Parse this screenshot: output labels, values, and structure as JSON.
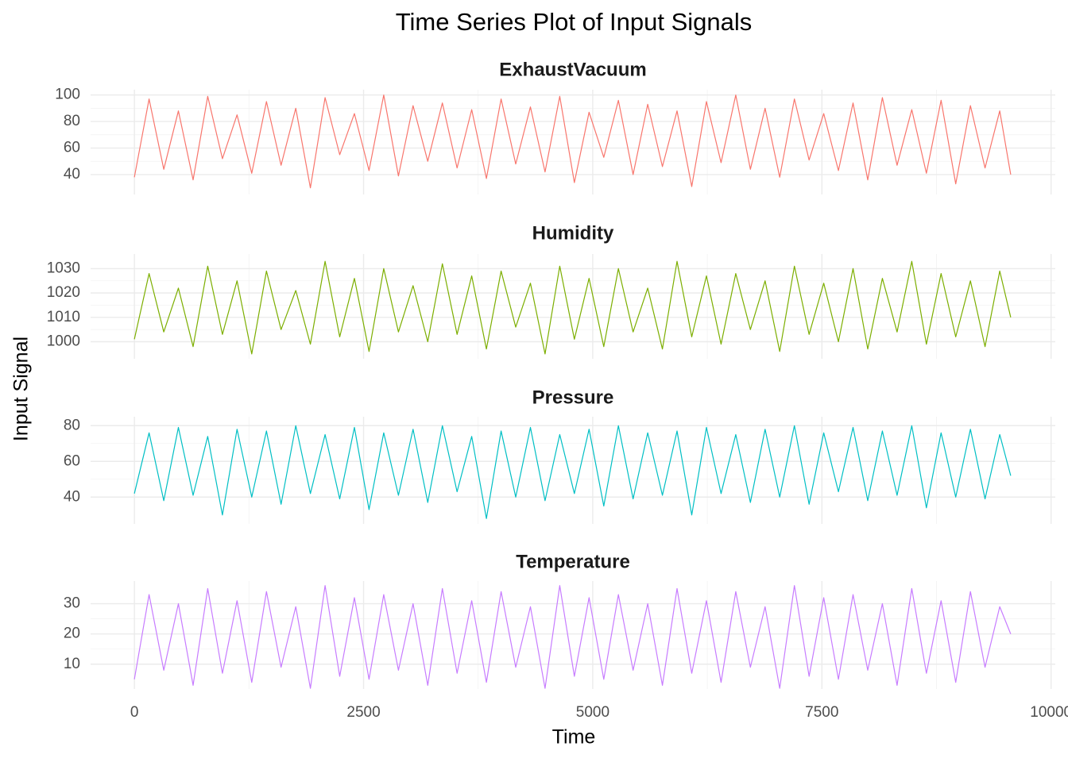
{
  "title": "Time Series Plot of Input Signals",
  "x_label": "Time",
  "y_label": "Input Signal",
  "chart_data": [
    {
      "type": "line",
      "title": "ExhaustVacuum",
      "color": "#F8766D",
      "x": [
        0,
        160,
        320,
        480,
        640,
        800,
        960,
        1120,
        1280,
        1440,
        1600,
        1760,
        1920,
        2080,
        2240,
        2400,
        2560,
        2720,
        2880,
        3040,
        3200,
        3360,
        3520,
        3680,
        3840,
        4000,
        4160,
        4320,
        4480,
        4640,
        4800,
        4960,
        5120,
        5280,
        5440,
        5600,
        5760,
        5920,
        6080,
        6240,
        6400,
        6560,
        6720,
        6880,
        7040,
        7200,
        7360,
        7520,
        7680,
        7840,
        8000,
        8160,
        8320,
        8480,
        8640,
        8800,
        8960,
        9120,
        9280,
        9440,
        9560
      ],
      "values": [
        38,
        97,
        44,
        88,
        36,
        99,
        52,
        85,
        41,
        95,
        47,
        90,
        30,
        98,
        55,
        86,
        43,
        100,
        39,
        92,
        50,
        94,
        45,
        89,
        37,
        97,
        48,
        91,
        42,
        99,
        34,
        87,
        53,
        96,
        40,
        93,
        46,
        88,
        31,
        95,
        49,
        100,
        44,
        90,
        38,
        97,
        51,
        86,
        43,
        94,
        36,
        98,
        47,
        89,
        41,
        96,
        33,
        92,
        45,
        88,
        40
      ],
      "xlim": [
        -478,
        10046
      ],
      "xticks": [
        0,
        2500,
        5000,
        7500,
        10000
      ],
      "ylim": [
        25,
        104
      ],
      "yticks": [
        40,
        60,
        80,
        100
      ],
      "grid": true
    },
    {
      "type": "line",
      "title": "Humidity",
      "color": "#7CAE00",
      "x": [
        0,
        160,
        320,
        480,
        640,
        800,
        960,
        1120,
        1280,
        1440,
        1600,
        1760,
        1920,
        2080,
        2240,
        2400,
        2560,
        2720,
        2880,
        3040,
        3200,
        3360,
        3520,
        3680,
        3840,
        4000,
        4160,
        4320,
        4480,
        4640,
        4800,
        4960,
        5120,
        5280,
        5440,
        5600,
        5760,
        5920,
        6080,
        6240,
        6400,
        6560,
        6720,
        6880,
        7040,
        7200,
        7360,
        7520,
        7680,
        7840,
        8000,
        8160,
        8320,
        8480,
        8640,
        8800,
        8960,
        9120,
        9280,
        9440,
        9560
      ],
      "values": [
        1001,
        1028,
        1004,
        1022,
        998,
        1031,
        1003,
        1025,
        995,
        1029,
        1005,
        1021,
        999,
        1033,
        1002,
        1026,
        996,
        1030,
        1004,
        1023,
        1000,
        1032,
        1003,
        1027,
        997,
        1029,
        1006,
        1024,
        995,
        1031,
        1001,
        1026,
        998,
        1030,
        1004,
        1022,
        997,
        1033,
        1002,
        1027,
        999,
        1028,
        1005,
        1025,
        996,
        1031,
        1003,
        1024,
        1000,
        1030,
        997,
        1026,
        1004,
        1033,
        999,
        1028,
        1002,
        1025,
        998,
        1029,
        1010
      ],
      "xlim": [
        -478,
        10046
      ],
      "xticks": [
        0,
        2500,
        5000,
        7500,
        10000
      ],
      "ylim": [
        993,
        1036
      ],
      "yticks": [
        1000,
        1010,
        1020,
        1030
      ],
      "grid": true
    },
    {
      "type": "line",
      "title": "Pressure",
      "color": "#00BFC4",
      "x": [
        0,
        160,
        320,
        480,
        640,
        800,
        960,
        1120,
        1280,
        1440,
        1600,
        1760,
        1920,
        2080,
        2240,
        2400,
        2560,
        2720,
        2880,
        3040,
        3200,
        3360,
        3520,
        3680,
        3840,
        4000,
        4160,
        4320,
        4480,
        4640,
        4800,
        4960,
        5120,
        5280,
        5440,
        5600,
        5760,
        5920,
        6080,
        6240,
        6400,
        6560,
        6720,
        6880,
        7040,
        7200,
        7360,
        7520,
        7680,
        7840,
        8000,
        8160,
        8320,
        8480,
        8640,
        8800,
        8960,
        9120,
        9280,
        9440,
        9560
      ],
      "values": [
        42,
        76,
        38,
        79,
        41,
        74,
        30,
        78,
        40,
        77,
        36,
        80,
        42,
        75,
        39,
        79,
        33,
        76,
        41,
        78,
        37,
        80,
        43,
        74,
        28,
        77,
        40,
        79,
        38,
        75,
        42,
        78,
        35,
        80,
        39,
        76,
        41,
        77,
        30,
        79,
        42,
        75,
        37,
        78,
        40,
        80,
        36,
        76,
        43,
        79,
        38,
        77,
        41,
        80,
        34,
        76,
        40,
        78,
        39,
        75,
        52
      ],
      "xlim": [
        -478,
        10046
      ],
      "xticks": [
        0,
        2500,
        5000,
        7500,
        10000
      ],
      "ylim": [
        25,
        85
      ],
      "yticks": [
        40,
        60,
        80
      ],
      "grid": true
    },
    {
      "type": "line",
      "title": "Temperature",
      "color": "#C77CFF",
      "x": [
        0,
        160,
        320,
        480,
        640,
        800,
        960,
        1120,
        1280,
        1440,
        1600,
        1760,
        1920,
        2080,
        2240,
        2400,
        2560,
        2720,
        2880,
        3040,
        3200,
        3360,
        3520,
        3680,
        3840,
        4000,
        4160,
        4320,
        4480,
        4640,
        4800,
        4960,
        5120,
        5280,
        5440,
        5600,
        5760,
        5920,
        6080,
        6240,
        6400,
        6560,
        6720,
        6880,
        7040,
        7200,
        7360,
        7520,
        7680,
        7840,
        8000,
        8160,
        8320,
        8480,
        8640,
        8800,
        8960,
        9120,
        9280,
        9440,
        9560
      ],
      "values": [
        5,
        33,
        8,
        30,
        3,
        35,
        7,
        31,
        4,
        34,
        9,
        29,
        2,
        36,
        6,
        32,
        5,
        33,
        8,
        30,
        3,
        35,
        7,
        31,
        4,
        34,
        9,
        29,
        2,
        36,
        6,
        32,
        5,
        33,
        8,
        30,
        3,
        35,
        7,
        31,
        4,
        34,
        9,
        29,
        2,
        36,
        6,
        32,
        5,
        33,
        8,
        30,
        3,
        35,
        7,
        31,
        4,
        34,
        9,
        29,
        20
      ],
      "xlim": [
        -478,
        10046
      ],
      "xticks": [
        0,
        2500,
        5000,
        7500,
        10000
      ],
      "ylim": [
        1.8,
        37.5
      ],
      "yticks": [
        10,
        20,
        30
      ],
      "grid": true
    }
  ]
}
